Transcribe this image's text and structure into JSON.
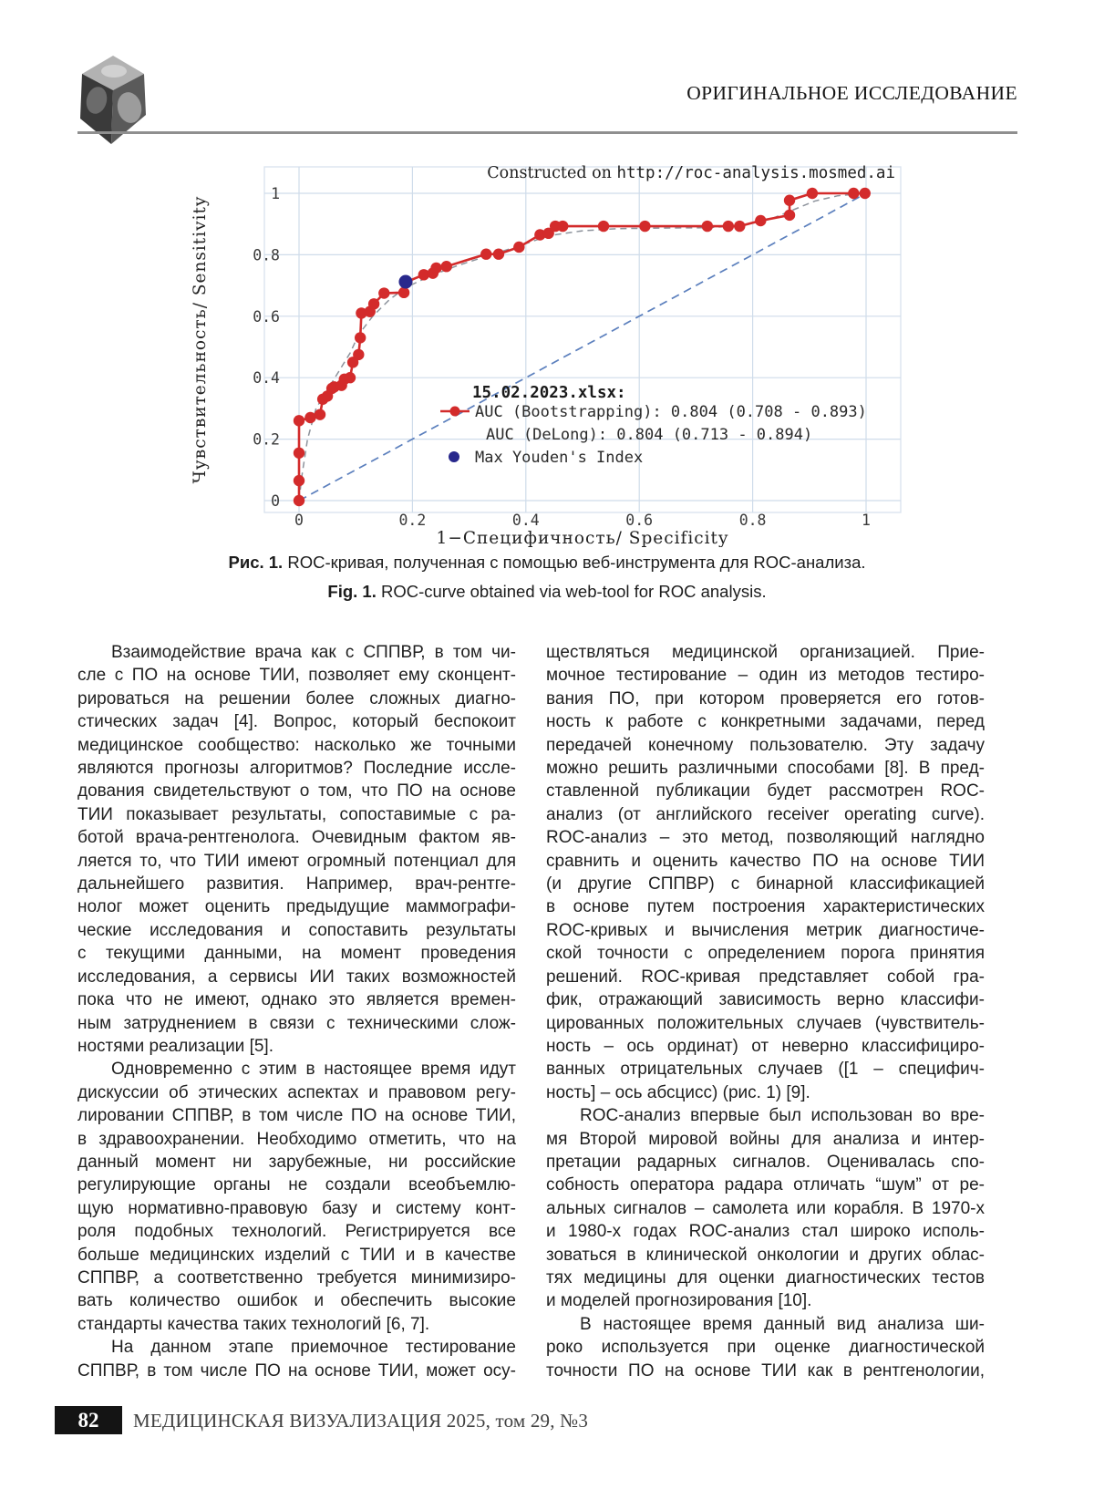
{
  "header": {
    "section_label": "ОРИГИНАЛЬНОЕ ИССЛЕДОВАНИЕ"
  },
  "figure": {
    "caption_ru_label": "Рис. 1.",
    "caption_ru_text": " ROC-кривая, полученная с помощью веб-инструмента для ROC-анализа.",
    "caption_en_label": "Fig. 1.",
    "caption_en_text": " ROC-curve obtained via web-tool for ROC analysis."
  },
  "chart_data": {
    "type": "line",
    "title_prefix": "Constructed on ",
    "title_url": "http://roc-analysis.mosmed.ai",
    "xlabel": "1−Специфичность/ Specificity",
    "ylabel": "Чувствительность/ Sensitivity",
    "xlim": [
      0,
      1
    ],
    "ylim": [
      0,
      1
    ],
    "xticks": [
      0,
      0.2,
      0.4,
      0.6,
      0.8,
      1
    ],
    "yticks": [
      0,
      0.2,
      0.4,
      0.6,
      0.8,
      1
    ],
    "grid": true,
    "legend_position": "inside lower-right",
    "legend": {
      "dataset": "15.02.2023.xlsx:",
      "items": [
        {
          "marker": "red-line-dot",
          "label": "AUC (Bootstrapping): 0.804 (0.708 - 0.893)"
        },
        {
          "marker": "none",
          "label": "AUC (DeLong): 0.804 (0.713 - 0.894)"
        },
        {
          "marker": "blue-dot",
          "label": "Max Youden's Index"
        }
      ]
    },
    "roc_color": "#d32b2b",
    "diagonal_color": "#5b7fbd",
    "fit_color": "#8d939c",
    "grid_color": "#cfdcea",
    "series": [
      {
        "name": "ROC curve (Bootstrapping)",
        "style": "solid line with dot markers",
        "points": [
          [
            0,
            0
          ],
          [
            0,
            0.065
          ],
          [
            0,
            0.155
          ],
          [
            0,
            0.26
          ],
          [
            0.02,
            0.27
          ],
          [
            0.037,
            0.28
          ],
          [
            0.042,
            0.33
          ],
          [
            0.05,
            0.34
          ],
          [
            0.058,
            0.365
          ],
          [
            0.062,
            0.37
          ],
          [
            0.075,
            0.375
          ],
          [
            0.08,
            0.395
          ],
          [
            0.09,
            0.4
          ],
          [
            0.095,
            0.45
          ],
          [
            0.105,
            0.475
          ],
          [
            0.108,
            0.53
          ],
          [
            0.11,
            0.61
          ],
          [
            0.125,
            0.615
          ],
          [
            0.132,
            0.64
          ],
          [
            0.15,
            0.675
          ],
          [
            0.185,
            0.677
          ],
          [
            0.19,
            0.712
          ],
          [
            0.22,
            0.735
          ],
          [
            0.236,
            0.74
          ],
          [
            0.242,
            0.757
          ],
          [
            0.26,
            0.762
          ],
          [
            0.33,
            0.802
          ],
          [
            0.352,
            0.802
          ],
          [
            0.388,
            0.825
          ],
          [
            0.425,
            0.865
          ],
          [
            0.44,
            0.87
          ],
          [
            0.452,
            0.893
          ],
          [
            0.465,
            0.893
          ],
          [
            0.537,
            0.893
          ],
          [
            0.61,
            0.893
          ],
          [
            0.72,
            0.893
          ],
          [
            0.757,
            0.893
          ],
          [
            0.777,
            0.893
          ],
          [
            0.814,
            0.911
          ],
          [
            0.865,
            0.929
          ],
          [
            0.865,
            0.977
          ],
          [
            0.905,
            1
          ],
          [
            0.978,
            1
          ],
          [
            0.998,
            1
          ]
        ]
      },
      {
        "name": "smoothed (binormal) fit",
        "style": "dashed gray",
        "points": [
          [
            0,
            0
          ],
          [
            0.005,
            0.08
          ],
          [
            0.015,
            0.2
          ],
          [
            0.03,
            0.3
          ],
          [
            0.05,
            0.36
          ],
          [
            0.07,
            0.42
          ],
          [
            0.09,
            0.48
          ],
          [
            0.105,
            0.54
          ],
          [
            0.13,
            0.6
          ],
          [
            0.16,
            0.655
          ],
          [
            0.19,
            0.695
          ],
          [
            0.23,
            0.73
          ],
          [
            0.28,
            0.765
          ],
          [
            0.33,
            0.795
          ],
          [
            0.39,
            0.83
          ],
          [
            0.44,
            0.862
          ],
          [
            0.5,
            0.878
          ],
          [
            0.56,
            0.885
          ],
          [
            0.64,
            0.887
          ],
          [
            0.72,
            0.888
          ],
          [
            0.78,
            0.895
          ],
          [
            0.83,
            0.915
          ],
          [
            0.87,
            0.945
          ],
          [
            0.91,
            0.975
          ],
          [
            0.95,
            0.992
          ],
          [
            1,
            1
          ]
        ]
      },
      {
        "name": "chance diagonal",
        "style": "dashed blue",
        "points": [
          [
            0,
            0
          ],
          [
            1,
            1
          ]
        ]
      }
    ],
    "max_youden_point": {
      "x": 0.188,
      "y": 0.712,
      "color": "#28288c"
    }
  },
  "article": {
    "left_column": {
      "paragraphs": [
        {
          "indent": true,
          "justify_last": false,
          "lines": [
            "Взаимодействие врача как с СППВР, в том чи-",
            "сле с ПО на основе ТИИ, позволяет ему сконцент-",
            "рироваться на решении более сложных диагно-",
            "стических задач [4]. Вопрос, который беспокоит",
            "медицинское сообщество: насколько же точными",
            "являются прогнозы алгоритмов? Последние иссле-",
            "дования свидетельствуют о том, что ПО на основе",
            "ТИИ показывает результаты, сопоставимые с ра-",
            "ботой врача-рентгенолога. Очевидным фактом яв-",
            "ляется то, что ТИИ имеют огромный потенциал для",
            "дальнейшего развития. Например, врач-рентге-",
            "нолог может оценить предыдущие маммографи-",
            "ческие исследования и сопоставить результаты",
            "с текущими данными, на момент проведения",
            "исследования, а сервисы ИИ таких возможностей",
            "пока что не имеют, однако это является времен-",
            "ным затруднением в связи с техническими слож-",
            "ностями реализации [5]."
          ]
        },
        {
          "indent": true,
          "justify_last": false,
          "lines": [
            "Одновременно с этим в настоящее время идут",
            "дискуссии об этических аспектах и правовом регу-",
            "лировании СППВР, в том числе ПО на основе ТИИ,",
            "в здравоохранении. Необходимо отметить, что на",
            "данный момент ни зарубежные, ни российские",
            "регулирующие органы не создали всеобъемлю-",
            "щую нормативно-правовую базу и систему конт-",
            "роля подобных технологий. Регистрируется все",
            "больше медицинских изделий с ТИИ и в качестве",
            "СППВР, а соответственно требуется минимизиро-",
            "вать количество ошибок и обеспечить высокие",
            "стандарты качества таких технологий [6, 7]."
          ]
        },
        {
          "indent": true,
          "justify_last": true,
          "lines": [
            "На данном этапе приемочное тестирование",
            "СППВР, в том числе ПО на основе ТИИ, может осу-"
          ]
        }
      ]
    },
    "right_column": {
      "paragraphs": [
        {
          "indent": false,
          "justify_last": false,
          "lines": [
            "ществляться медицинской организацией. Прие-",
            "мочное тестирование – один из методов тестиро-",
            "вания ПО, при котором проверяется его готов-",
            "ность к работе с конкретными задачами, перед",
            "передачей конечному пользователю. Эту задачу",
            "можно решить различными способами [8]. В пред-",
            "ставленной публикации будет рассмотрен ROC-",
            "анализ (от английского receiver operating curve).",
            "ROC-анализ – это метод, позволяющий наглядно",
            "сравнить и оценить качество ПО на основе ТИИ",
            "(и другие СППВР) с бинарной классификацией",
            "в основе путем построения характеристических",
            "ROC-кривых и вычисления метрик диагностиче-",
            "ской точности с определением порога принятия",
            "решений. ROC-кривая представляет собой гра-",
            "фик, отражающий зависимость верно классифи-",
            "цированных положительных случаев (чувствитель-",
            "ность – ось ординат) от неверно классифициро-",
            "ванных отрицательных случаев ([1 – специфич-",
            "ность] – ось абсцисс) (рис. 1) [9]."
          ]
        },
        {
          "indent": true,
          "justify_last": false,
          "lines": [
            "ROC-анализ впервые был использован во вре-",
            "мя Второй мировой войны для анализа и интер-",
            "претации радарных сигналов. Оценивалась спо-",
            "собность оператора радара отличать “шум” от ре-",
            "альных сигналов – самолета или корабля. В 1970-х",
            "и 1980-х годах ROC-анализ стал широко исполь-",
            "зоваться в клинической онкологии и других облас-",
            "тях медицины для оценки диагностических тестов",
            "и моделей прогнозирования [10]."
          ]
        },
        {
          "indent": true,
          "justify_last": true,
          "lines": [
            "В настоящее время данный вид анализа ши-",
            "роко используется при оценке диагностической",
            "точности ПО на основе ТИИ как в рентгенологии,"
          ]
        }
      ]
    }
  },
  "footer": {
    "page_number": "82",
    "journal_line": "МЕДИЦИНСКАЯ ВИЗУАЛИЗАЦИЯ 2025, том 29, №3"
  }
}
